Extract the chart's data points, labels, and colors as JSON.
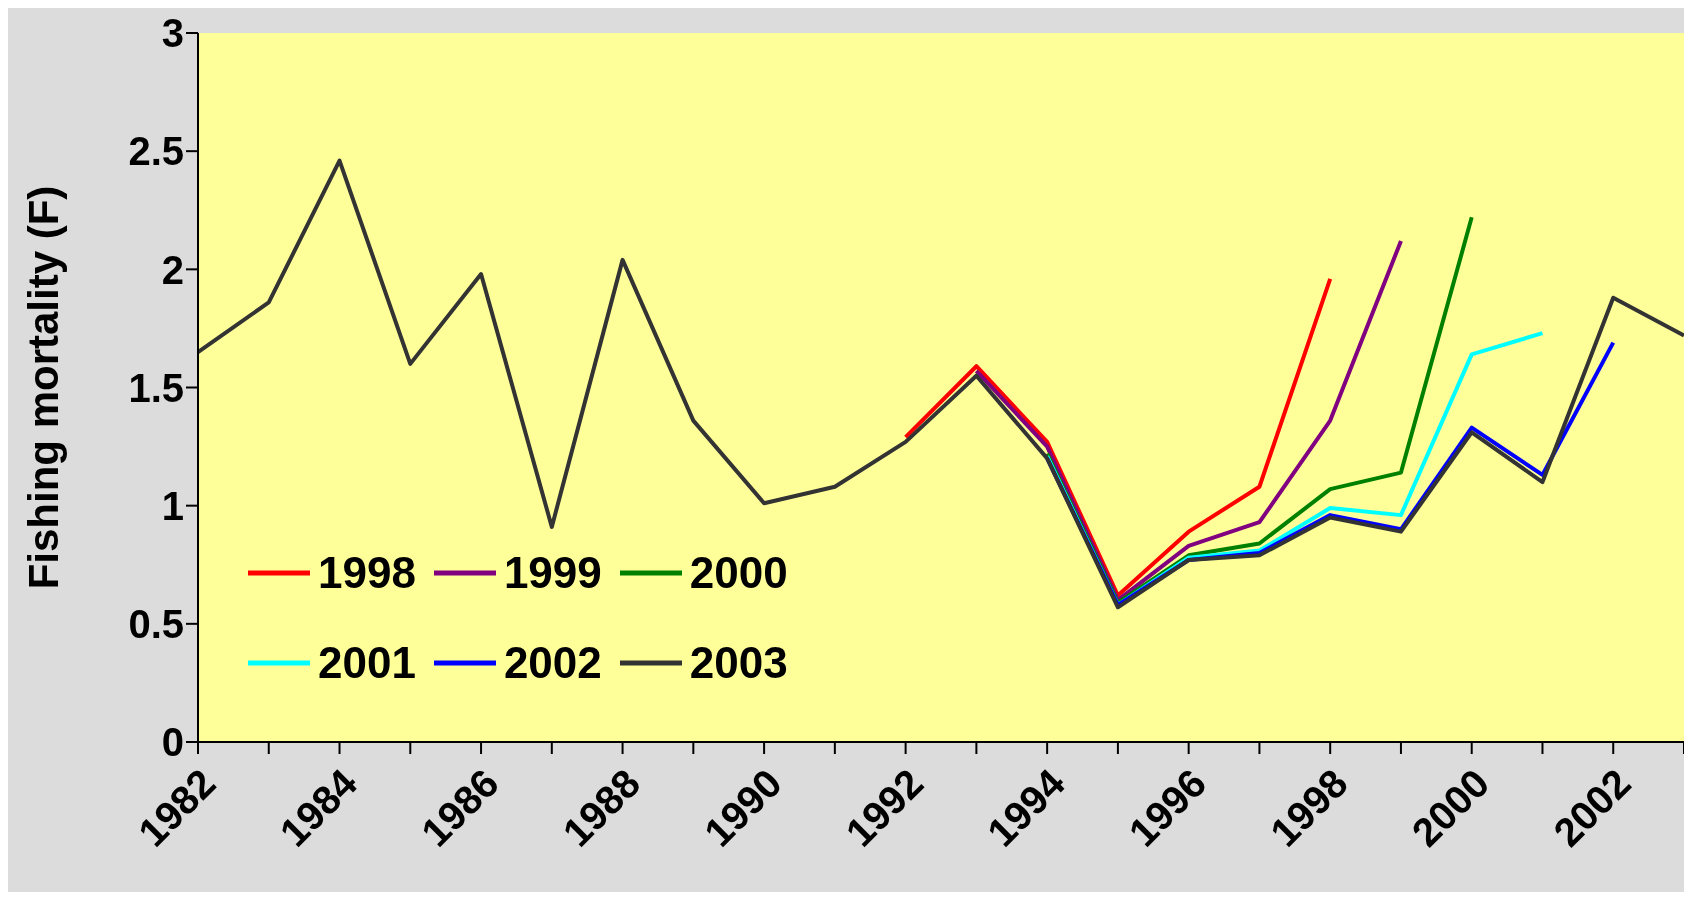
{
  "chart_data": {
    "type": "line",
    "ylabel": "Fishing mortality (F)",
    "categories": [
      "1982",
      null,
      "1984",
      null,
      "1986",
      null,
      "1988",
      null,
      "1990",
      null,
      "1992",
      null,
      "1994",
      null,
      "1996",
      null,
      "1998",
      null,
      "2000",
      null,
      "2002",
      null
    ],
    "series": [
      {
        "name": "1998",
        "color": "#ff0000",
        "values": [
          null,
          null,
          null,
          null,
          null,
          null,
          null,
          null,
          null,
          null,
          1.29,
          1.59,
          1.27,
          0.62,
          0.89,
          1.08,
          1.96,
          null,
          null,
          null,
          null,
          null
        ]
      },
      {
        "name": "1999",
        "color": "#800080",
        "values": [
          null,
          null,
          null,
          null,
          null,
          null,
          null,
          null,
          null,
          null,
          null,
          1.57,
          1.25,
          0.6,
          0.83,
          0.93,
          1.36,
          2.12,
          null,
          null,
          null,
          null
        ]
      },
      {
        "name": "2000",
        "color": "#008000",
        "values": [
          null,
          null,
          null,
          null,
          null,
          null,
          null,
          null,
          null,
          null,
          null,
          null,
          1.22,
          0.59,
          0.79,
          0.84,
          1.07,
          1.14,
          2.22,
          null,
          null,
          null
        ]
      },
      {
        "name": "2001",
        "color": "#00ffff",
        "values": [
          null,
          null,
          null,
          null,
          null,
          null,
          null,
          null,
          null,
          null,
          null,
          null,
          1.21,
          0.58,
          0.78,
          0.81,
          0.99,
          0.96,
          1.64,
          1.73,
          null,
          null
        ]
      },
      {
        "name": "2002",
        "color": "#0000ff",
        "values": [
          null,
          null,
          null,
          null,
          null,
          null,
          null,
          null,
          null,
          null,
          null,
          null,
          1.2,
          0.58,
          0.77,
          0.8,
          0.96,
          0.9,
          1.33,
          1.13,
          1.69,
          null
        ]
      },
      {
        "name": "2003",
        "color": "#333333",
        "values": [
          1.65,
          1.86,
          2.46,
          1.6,
          1.98,
          0.91,
          2.04,
          1.36,
          1.01,
          1.08,
          1.27,
          1.55,
          1.2,
          0.57,
          0.77,
          0.79,
          0.95,
          0.89,
          1.31,
          1.1,
          1.88,
          1.72
        ]
      }
    ],
    "ylim": [
      0,
      3
    ],
    "yticks": [
      0,
      0.5,
      1,
      1.5,
      2,
      2.5,
      3
    ],
    "grid": false,
    "legend": "bottom left",
    "marker": "none",
    "line_style": "solid"
  }
}
